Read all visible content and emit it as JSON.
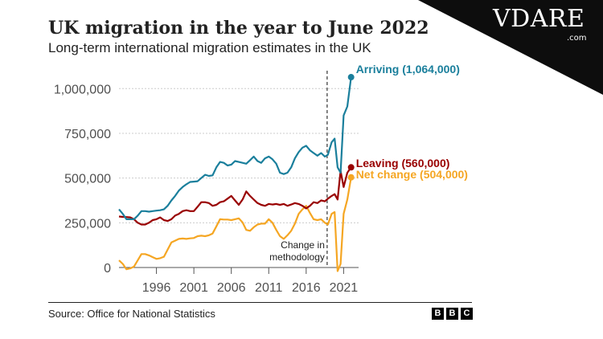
{
  "title": "UK migration in the year to June 2022",
  "subtitle": "Long-term international migration estimates in the UK",
  "source": "Source: Office for National Statistics",
  "bbc_letters": [
    "B",
    "B",
    "C"
  ],
  "watermark": {
    "main": "VDARE",
    "suffix": ".com"
  },
  "chart_data": {
    "type": "line",
    "title": "UK migration in the year to June 2022",
    "subtitle": "Long-term international migration estimates in the UK",
    "xlim": [
      1991,
      2023
    ],
    "ylim": [
      0,
      1100000
    ],
    "x_ticks": [
      1996,
      2001,
      2006,
      2011,
      2016,
      2021
    ],
    "x_tick_labels": [
      "1996",
      "2001",
      "2006",
      "2011",
      "2016",
      "2021"
    ],
    "y_ticks": [
      0,
      250000,
      500000,
      750000,
      1000000
    ],
    "y_tick_labels": [
      "0",
      "250,000",
      "500,000",
      "750,000",
      "1,000,000"
    ],
    "methodology_break_x": 2018.8,
    "annotation": "Change in methodology",
    "series": [
      {
        "name": "Arriving",
        "label": "Arriving (1,064,000)",
        "color": "#1a7f9c",
        "x": [
          1991.0,
          1991.5,
          1992.0,
          1992.5,
          1993.0,
          1993.5,
          1994.0,
          1994.5,
          1995.0,
          1995.5,
          1996.0,
          1996.5,
          1997.0,
          1997.5,
          1998.0,
          1998.5,
          1999.0,
          1999.5,
          2000.0,
          2000.5,
          2001.0,
          2001.5,
          2002.0,
          2002.5,
          2003.0,
          2003.5,
          2004.0,
          2004.5,
          2005.0,
          2005.5,
          2006.0,
          2006.5,
          2007.0,
          2007.5,
          2008.0,
          2008.5,
          2009.0,
          2009.5,
          2010.0,
          2010.5,
          2011.0,
          2011.5,
          2012.0,
          2012.5,
          2013.0,
          2013.5,
          2014.0,
          2014.5,
          2015.0,
          2015.5,
          2016.0,
          2016.5,
          2017.0,
          2017.5,
          2018.0,
          2018.5,
          2018.9,
          2019.4,
          2019.8,
          2020.2,
          2020.6,
          2021.0,
          2021.5,
          2022.0
        ],
        "y": [
          325000,
          300000,
          270000,
          270000,
          270000,
          290000,
          315000,
          315000,
          312000,
          315000,
          318000,
          320000,
          325000,
          345000,
          375000,
          400000,
          430000,
          450000,
          465000,
          478000,
          480000,
          482000,
          500000,
          518000,
          512000,
          515000,
          560000,
          590000,
          585000,
          570000,
          575000,
          595000,
          590000,
          585000,
          580000,
          600000,
          620000,
          595000,
          585000,
          610000,
          620000,
          605000,
          580000,
          530000,
          522000,
          530000,
          560000,
          610000,
          645000,
          670000,
          680000,
          655000,
          640000,
          625000,
          640000,
          620000,
          630000,
          700000,
          720000,
          560000,
          530000,
          850000,
          900000,
          1064000
        ]
      },
      {
        "name": "Leaving",
        "label": "Leaving (560,000)",
        "color": "#990000",
        "x": [
          1991.0,
          1991.5,
          1992.0,
          1992.5,
          1993.0,
          1993.5,
          1994.0,
          1994.5,
          1995.0,
          1995.5,
          1996.0,
          1996.5,
          1997.0,
          1997.5,
          1998.0,
          1998.5,
          1999.0,
          1999.5,
          2000.0,
          2000.5,
          2001.0,
          2001.5,
          2002.0,
          2002.5,
          2003.0,
          2003.5,
          2004.0,
          2004.5,
          2005.0,
          2005.5,
          2006.0,
          2006.5,
          2007.0,
          2007.5,
          2008.0,
          2008.5,
          2009.0,
          2009.5,
          2010.0,
          2010.5,
          2011.0,
          2011.5,
          2012.0,
          2012.5,
          2013.0,
          2013.5,
          2014.0,
          2014.5,
          2015.0,
          2015.5,
          2016.0,
          2016.5,
          2017.0,
          2017.5,
          2018.0,
          2018.5,
          2018.9,
          2019.4,
          2019.8,
          2020.2,
          2020.6,
          2021.0,
          2021.5,
          2022.0
        ],
        "y": [
          285000,
          283000,
          282000,
          280000,
          270000,
          250000,
          240000,
          240000,
          250000,
          265000,
          270000,
          280000,
          265000,
          260000,
          270000,
          290000,
          300000,
          315000,
          320000,
          315000,
          315000,
          340000,
          365000,
          365000,
          360000,
          345000,
          350000,
          365000,
          370000,
          385000,
          400000,
          375000,
          350000,
          380000,
          425000,
          400000,
          380000,
          360000,
          350000,
          345000,
          355000,
          352000,
          355000,
          350000,
          355000,
          345000,
          352000,
          360000,
          355000,
          345000,
          330000,
          345000,
          365000,
          360000,
          375000,
          370000,
          385000,
          400000,
          410000,
          380000,
          540000,
          450000,
          530000,
          560000
        ]
      },
      {
        "name": "Net change",
        "label": "Net change (504,000)",
        "color": "#f5a623",
        "x": [
          1991.0,
          1991.5,
          1992.0,
          1992.5,
          1993.0,
          1993.5,
          1994.0,
          1994.5,
          1995.0,
          1995.5,
          1996.0,
          1996.5,
          1997.0,
          1997.5,
          1998.0,
          1998.5,
          1999.0,
          1999.5,
          2000.0,
          2000.5,
          2001.0,
          2001.5,
          2002.0,
          2002.5,
          2003.0,
          2003.5,
          2004.0,
          2004.5,
          2005.0,
          2005.5,
          2006.0,
          2006.5,
          2007.0,
          2007.5,
          2008.0,
          2008.5,
          2009.0,
          2009.5,
          2010.0,
          2010.5,
          2011.0,
          2011.5,
          2012.0,
          2012.5,
          2013.0,
          2013.5,
          2014.0,
          2014.5,
          2015.0,
          2015.5,
          2016.0,
          2016.5,
          2017.0,
          2017.5,
          2018.0,
          2018.5,
          2018.9,
          2019.4,
          2019.8,
          2020.2,
          2020.6,
          2021.0,
          2021.5,
          2022.0
        ],
        "y": [
          40000,
          20000,
          -10000,
          -5000,
          5000,
          40000,
          75000,
          75000,
          68000,
          58000,
          48000,
          52000,
          60000,
          100000,
          140000,
          150000,
          160000,
          162000,
          160000,
          163000,
          165000,
          175000,
          178000,
          175000,
          180000,
          190000,
          230000,
          270000,
          268000,
          268000,
          265000,
          270000,
          275000,
          252000,
          210000,
          205000,
          225000,
          240000,
          245000,
          245000,
          270000,
          250000,
          210000,
          175000,
          160000,
          180000,
          205000,
          245000,
          300000,
          325000,
          345000,
          305000,
          270000,
          265000,
          270000,
          250000,
          240000,
          300000,
          310000,
          -20000,
          20000,
          300000,
          380000,
          504000
        ]
      }
    ]
  }
}
